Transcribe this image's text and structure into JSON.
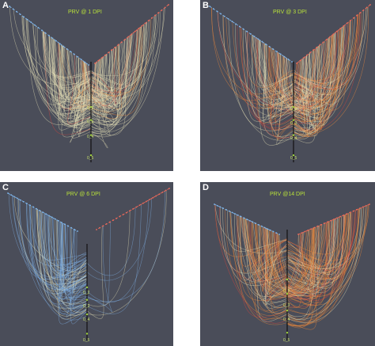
{
  "colors": {
    "background": "#4a4d59",
    "axis": "#111111",
    "panel_letter": "#ffffff",
    "title": "#b9e23a",
    "tick_label": "#c9e36a",
    "arc_light": "#e8e2b8",
    "arc_orange": "#f08a3a",
    "arc_red": "#e0443a",
    "arc_blue": "#7fb0e6",
    "node_left": "#7fb8f0",
    "node_right": "#f06a5a"
  },
  "panels": [
    {
      "letter": "A",
      "title": "PRV @ 1 DPI",
      "ticks": [
        "0_2",
        "0_3",
        "0_4",
        "0_5"
      ]
    },
    {
      "letter": "B",
      "title": "PRV @ 3 DPI",
      "ticks": [
        "0_2",
        "0_3",
        "0_4",
        "0_5"
      ]
    },
    {
      "letter": "C",
      "title": "PRV @ 6 DPI",
      "ticks": [
        "0_2",
        "0_3",
        "0_4",
        "0_5"
      ]
    },
    {
      "letter": "D",
      "title": "PRV @14 DPI",
      "ticks": [
        "0_2",
        "0_3",
        "0_4",
        "0_5"
      ]
    }
  ]
}
